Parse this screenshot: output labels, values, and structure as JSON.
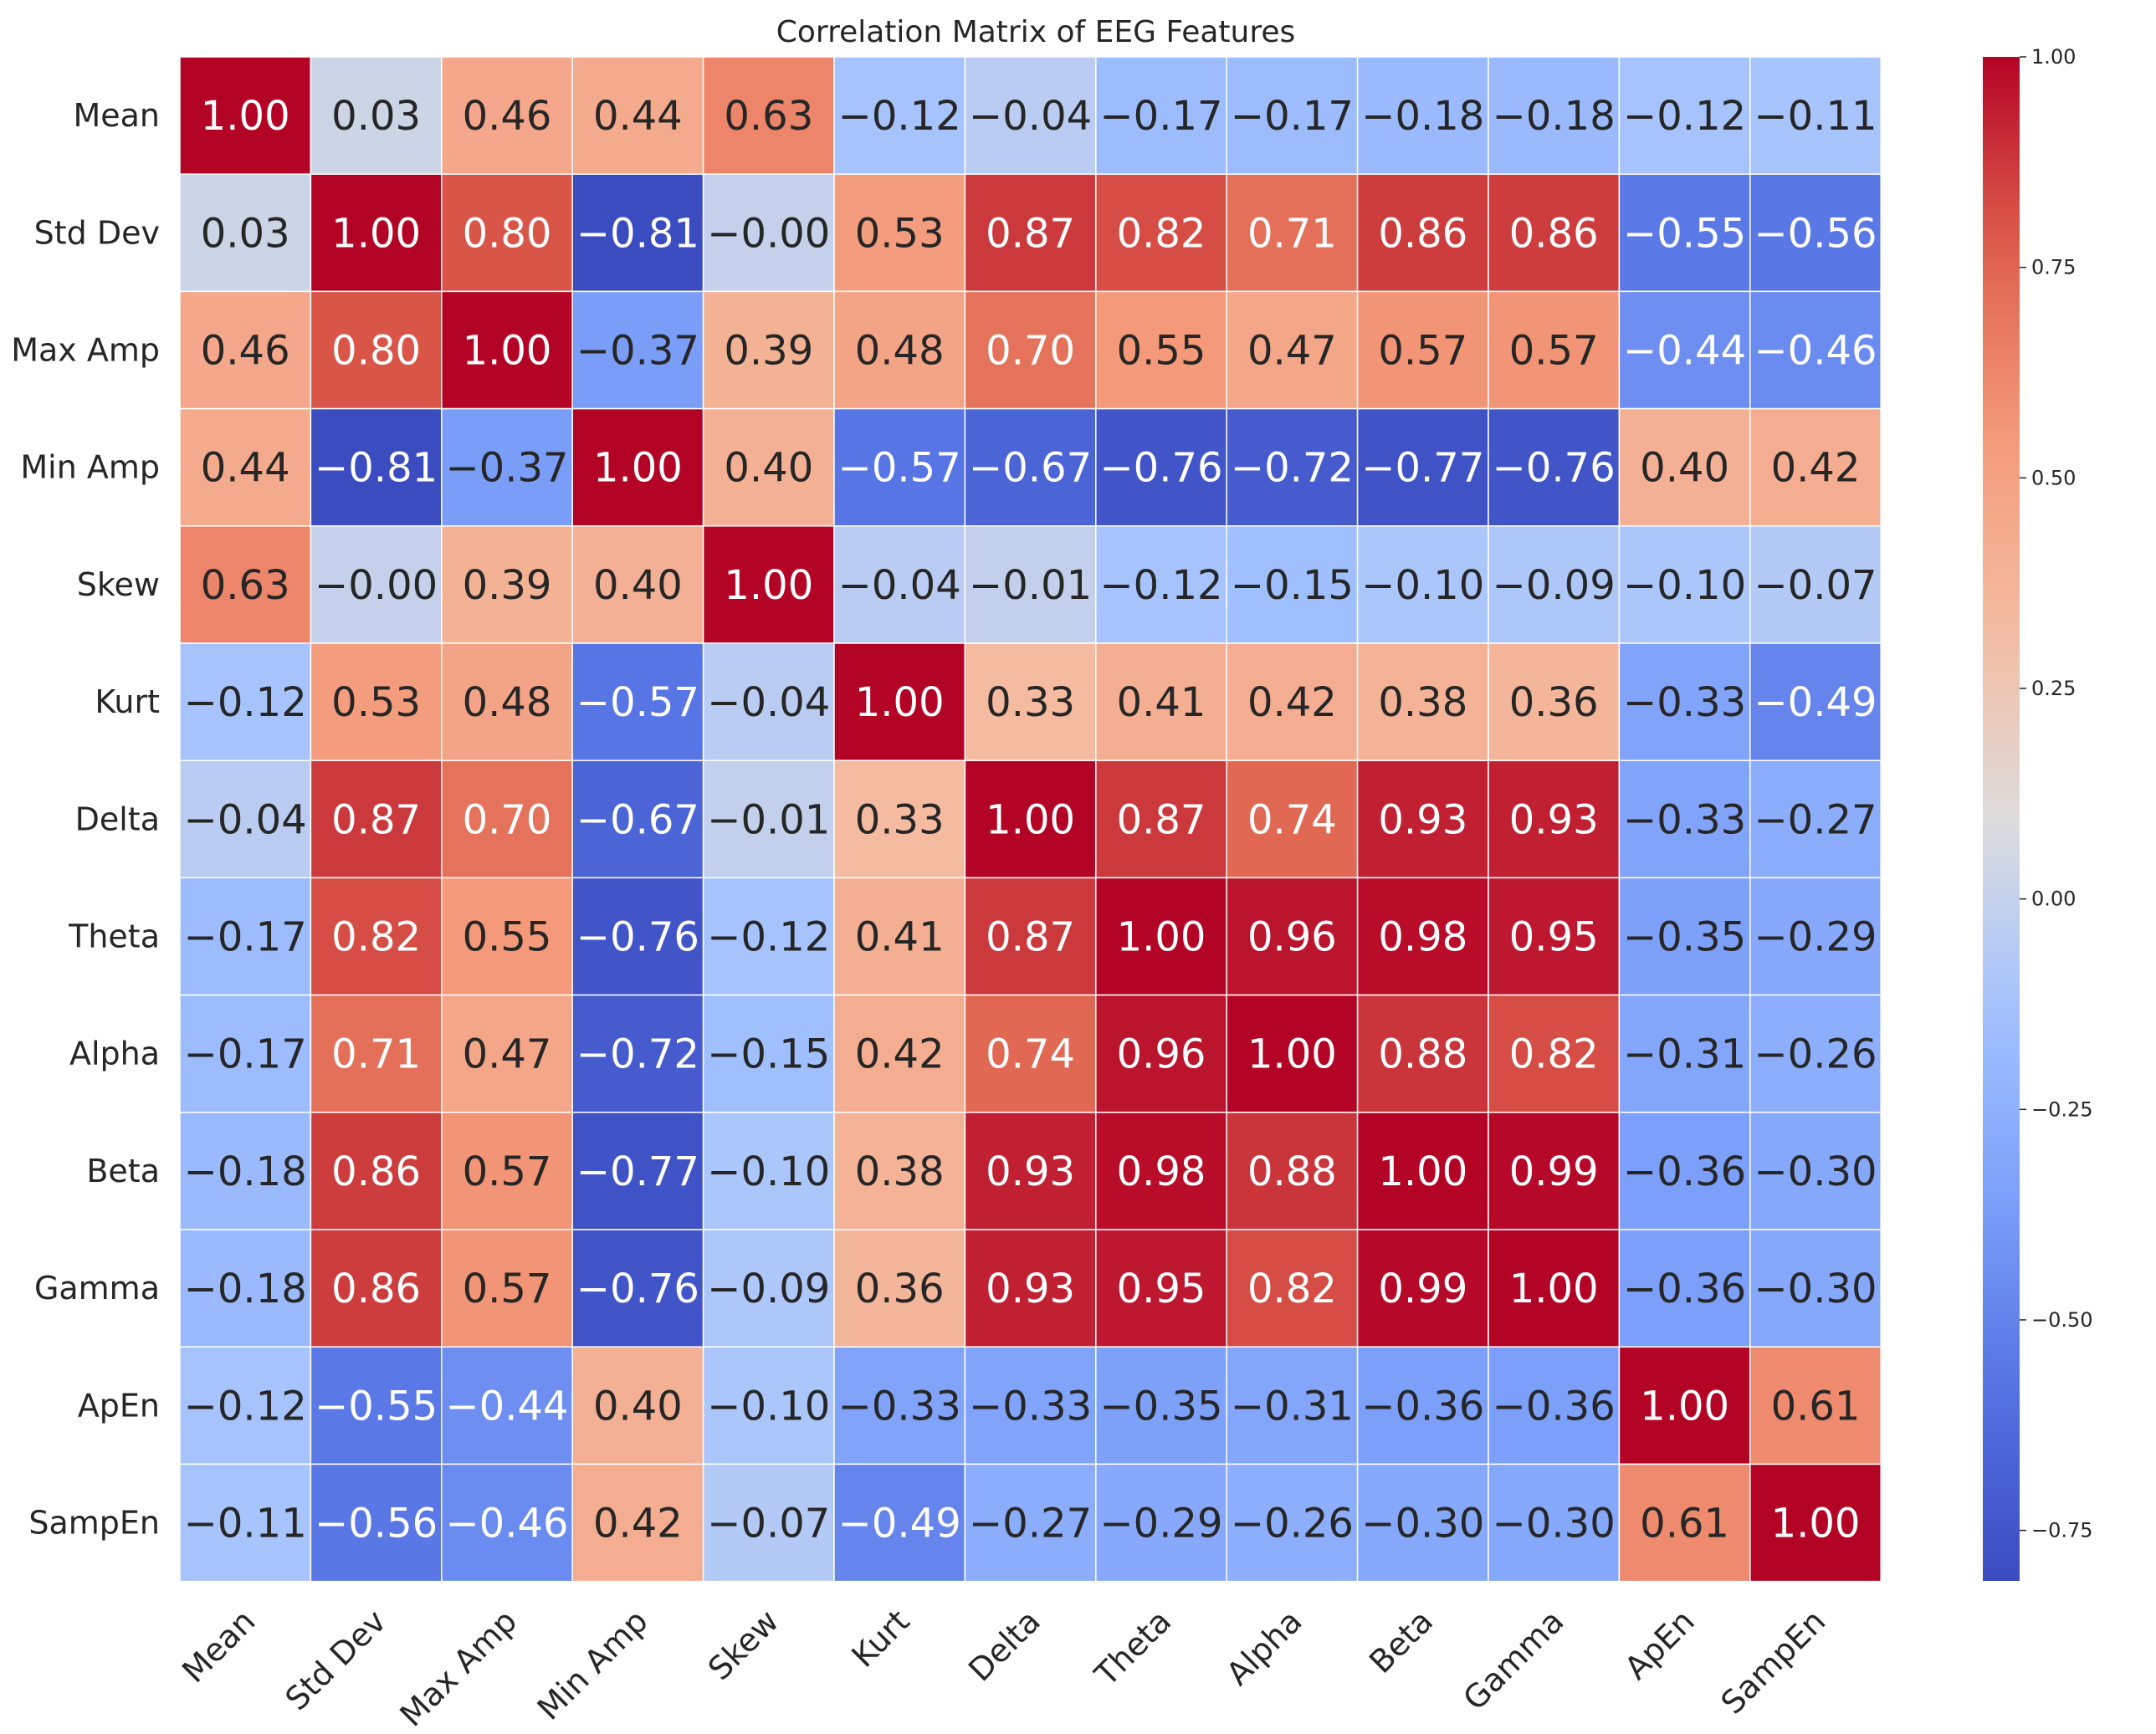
{
  "chart_data": {
    "type": "heatmap",
    "title": "Correlation Matrix of EEG Features",
    "colormap": "coolwarm",
    "vmin": -0.81,
    "vmax": 1.0,
    "labels": [
      "Mean",
      "Std Dev",
      "Max Amp",
      "Min Amp",
      "Skew",
      "Kurt",
      "Delta",
      "Theta",
      "Alpha",
      "Beta",
      "Gamma",
      "ApEn",
      "SampEn"
    ],
    "matrix": [
      [
        1.0,
        0.03,
        0.46,
        0.44,
        0.63,
        -0.12,
        -0.04,
        -0.17,
        -0.17,
        -0.18,
        -0.18,
        -0.12,
        -0.11
      ],
      [
        0.03,
        1.0,
        0.8,
        -0.81,
        -0.0,
        0.53,
        0.87,
        0.82,
        0.71,
        0.86,
        0.86,
        -0.55,
        -0.56
      ],
      [
        0.46,
        0.8,
        1.0,
        -0.37,
        0.39,
        0.48,
        0.7,
        0.55,
        0.47,
        0.57,
        0.57,
        -0.44,
        -0.46
      ],
      [
        0.44,
        -0.81,
        -0.37,
        1.0,
        0.4,
        -0.57,
        -0.67,
        -0.76,
        -0.72,
        -0.77,
        -0.76,
        0.4,
        0.42
      ],
      [
        0.63,
        -0.0,
        0.39,
        0.4,
        1.0,
        -0.04,
        -0.01,
        -0.12,
        -0.15,
        -0.1,
        -0.09,
        -0.1,
        -0.07
      ],
      [
        -0.12,
        0.53,
        0.48,
        -0.57,
        -0.04,
        1.0,
        0.33,
        0.41,
        0.42,
        0.38,
        0.36,
        -0.33,
        -0.49
      ],
      [
        -0.04,
        0.87,
        0.7,
        -0.67,
        -0.01,
        0.33,
        1.0,
        0.87,
        0.74,
        0.93,
        0.93,
        -0.33,
        -0.27
      ],
      [
        -0.17,
        0.82,
        0.55,
        -0.76,
        -0.12,
        0.41,
        0.87,
        1.0,
        0.96,
        0.98,
        0.95,
        -0.35,
        -0.29
      ],
      [
        -0.17,
        0.71,
        0.47,
        -0.72,
        -0.15,
        0.42,
        0.74,
        0.96,
        1.0,
        0.88,
        0.82,
        -0.31,
        -0.26
      ],
      [
        -0.18,
        0.86,
        0.57,
        -0.77,
        -0.1,
        0.38,
        0.93,
        0.98,
        0.88,
        1.0,
        0.99,
        -0.36,
        -0.3
      ],
      [
        -0.18,
        0.86,
        0.57,
        -0.76,
        -0.09,
        0.36,
        0.93,
        0.95,
        0.82,
        0.99,
        1.0,
        -0.36,
        -0.3
      ],
      [
        -0.12,
        -0.55,
        -0.44,
        0.4,
        -0.1,
        -0.33,
        -0.33,
        -0.35,
        -0.31,
        -0.36,
        -0.36,
        1.0,
        0.61
      ],
      [
        -0.11,
        -0.56,
        -0.46,
        0.42,
        -0.07,
        -0.49,
        -0.27,
        -0.29,
        -0.26,
        -0.3,
        -0.3,
        0.61,
        1.0
      ]
    ],
    "colorbar": {
      "ticks": [
        1.0,
        0.75,
        0.5,
        0.25,
        0.0,
        -0.25,
        -0.5,
        -0.75
      ],
      "tick_labels": [
        "1.00",
        "0.75",
        "0.50",
        "0.25",
        "0.00",
        "−0.25",
        "−0.50",
        "−0.75"
      ]
    }
  }
}
